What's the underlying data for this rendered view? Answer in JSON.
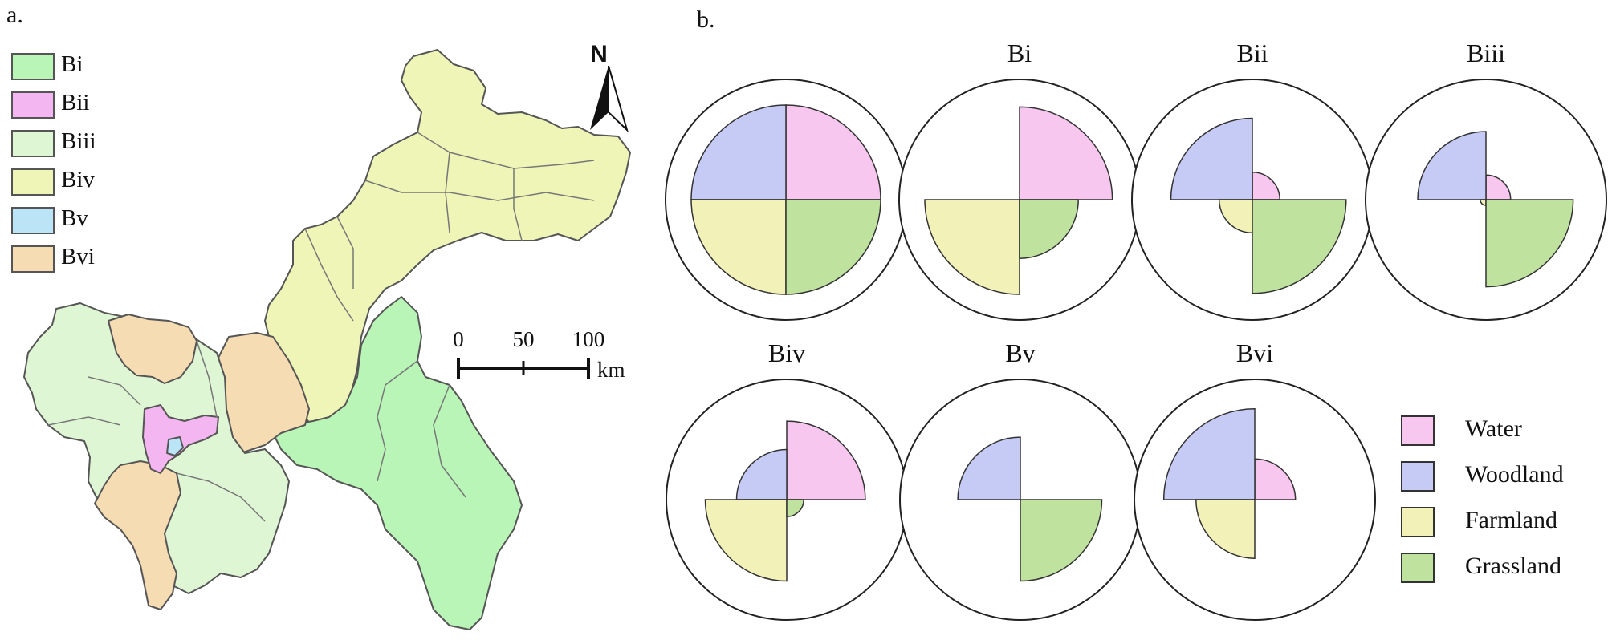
{
  "panels": {
    "a": "a.",
    "b": "b."
  },
  "map": {
    "legend": [
      {
        "key": "Bi",
        "color": "#b9f5b7"
      },
      {
        "key": "Bii",
        "color": "#f3b6f0"
      },
      {
        "key": "Biii",
        "color": "#dff6d4"
      },
      {
        "key": "Biv",
        "color": "#eef5b6"
      },
      {
        "key": "Bv",
        "color": "#bce4f7"
      },
      {
        "key": "Bvi",
        "color": "#f6dcb3"
      }
    ],
    "north_arrow": "N",
    "scale_bar": {
      "ticks": [
        "0",
        "50",
        "100"
      ],
      "unit": "km"
    }
  },
  "chart_data": {
    "type": "rose",
    "categories": [
      "Water",
      "Woodland",
      "Farmland",
      "Grassland"
    ],
    "colors": {
      "Water": "#f8c7ef",
      "Woodland": "#c5cbf5",
      "Farmland": "#f1f1b8",
      "Grassland": "#bfe29e"
    },
    "radius_max": 1.0,
    "charts": [
      {
        "title": "",
        "values": {
          "Water": 1.0,
          "Woodland": 1.0,
          "Farmland": 1.0,
          "Grassland": 1.0
        }
      },
      {
        "title": "Bi",
        "values": {
          "Water": 0.98,
          "Woodland": 0.0,
          "Farmland": 1.0,
          "Grassland": 0.62
        }
      },
      {
        "title": "Bii",
        "values": {
          "Water": 0.29,
          "Woodland": 0.86,
          "Farmland": 0.35,
          "Grassland": 0.99
        }
      },
      {
        "title": "Biii",
        "values": {
          "Water": 0.26,
          "Woodland": 0.72,
          "Farmland": 0.06,
          "Grassland": 0.92
        }
      },
      {
        "title": "Biv",
        "values": {
          "Water": 0.83,
          "Woodland": 0.53,
          "Farmland": 0.86,
          "Grassland": 0.18
        }
      },
      {
        "title": "Bv",
        "values": {
          "Water": 0.0,
          "Woodland": 0.66,
          "Farmland": 0.0,
          "Grassland": 0.86
        }
      },
      {
        "title": "Bvi",
        "values": {
          "Water": 0.43,
          "Woodland": 0.96,
          "Farmland": 0.62,
          "Grassland": 0.0
        }
      }
    ]
  },
  "legend_b": [
    {
      "key": "Water",
      "color": "#f8c7ef"
    },
    {
      "key": "Woodland",
      "color": "#c5cbf5"
    },
    {
      "key": "Farmland",
      "color": "#f1f1b8"
    },
    {
      "key": "Grassland",
      "color": "#bfe29e"
    }
  ]
}
